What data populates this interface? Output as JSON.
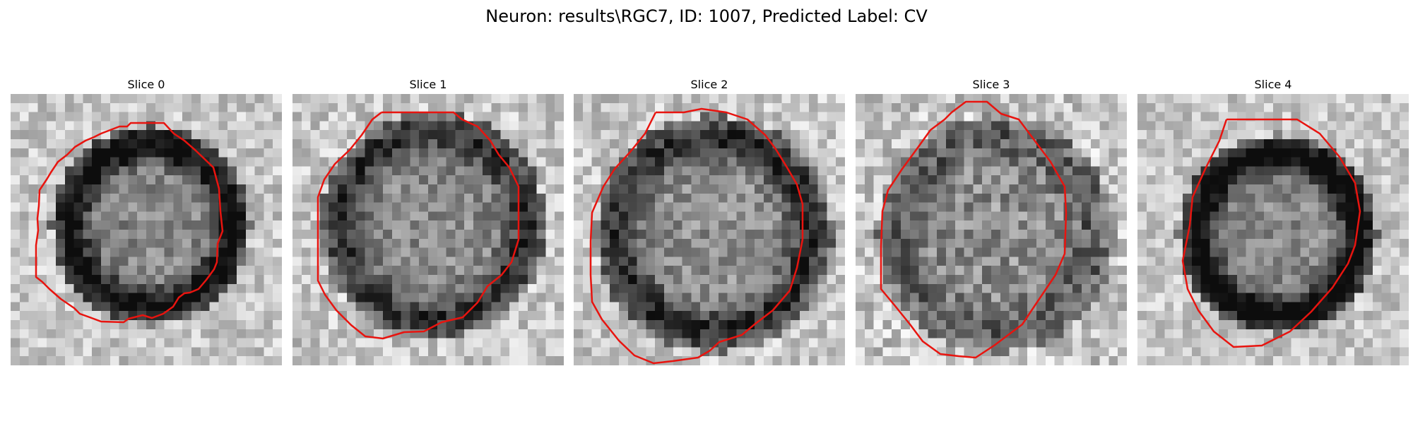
{
  "figure": {
    "title": "Neuron: results\\RGC7, ID: 1007, Predicted Label: CV"
  },
  "slices": [
    {
      "title": "Slice 0"
    },
    {
      "title": "Slice 1"
    },
    {
      "title": "Slice 2"
    },
    {
      "title": "Slice 3"
    },
    {
      "title": "Slice 4"
    }
  ],
  "colors": {
    "contour": "#e8140f",
    "background": "#ffffff",
    "colormap": "gray"
  }
}
